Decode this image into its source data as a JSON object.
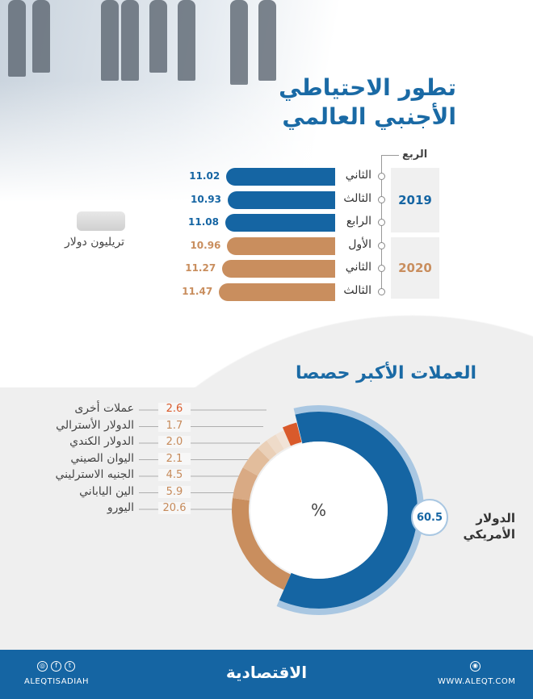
{
  "title": {
    "line1": "تطور الاحتياطي",
    "line2": "الأجنبي العالمي"
  },
  "quarter_header": "الربع",
  "unit": "تريليون دولار",
  "colors": {
    "y2019": "#1565a3",
    "y2020": "#c98e5e",
    "others": "#d95a2b",
    "light_blue": "#a9c7e2"
  },
  "chart_data": [
    {
      "type": "bar",
      "title": "تطور الاحتياطي الأجنبي العالمي",
      "unit": "تريليون دولار",
      "categories": [
        "الثاني",
        "الثالث",
        "الرابع",
        "الأول",
        "الثاني",
        "الثالث"
      ],
      "groups": [
        {
          "year": "2019",
          "indices": [
            0,
            1,
            2
          ]
        },
        {
          "year": "2020",
          "indices": [
            3,
            4,
            5
          ]
        }
      ],
      "values": [
        11.02,
        10.93,
        11.08,
        10.96,
        11.27,
        11.47
      ],
      "labels": [
        "11.02",
        "10.93",
        "11.08",
        "10.96",
        "11.27",
        "11.47"
      ]
    },
    {
      "type": "pie",
      "title": "العملات الأكبر حصصا",
      "center_label": "%",
      "slices": [
        {
          "name": "الدولار الأمريكي",
          "value": 60.5,
          "label": "60.5",
          "color": "#1565a3"
        },
        {
          "name": "اليورو",
          "value": 20.6,
          "label": "20.6",
          "color": "#c98e5e"
        },
        {
          "name": "الين الياباني",
          "value": 5.9,
          "label": "5.9",
          "color": "#d9aa84"
        },
        {
          "name": "الجنيه الاسترليني",
          "value": 4.5,
          "label": "4.5",
          "color": "#e2bd9c"
        },
        {
          "name": "اليوان الصيني",
          "value": 2.1,
          "label": "2.1",
          "color": "#ead0b8"
        },
        {
          "name": "الدولار الكندي",
          "value": 2.0,
          "label": "2.0",
          "color": "#eedbc9"
        },
        {
          "name": "الدولار الأسترالي",
          "value": 1.7,
          "label": "1.7",
          "color": "#f1e3d7"
        },
        {
          "name": "عملات أخرى",
          "value": 2.6,
          "label": "2.6",
          "color": "#d95a2b"
        }
      ]
    }
  ],
  "usd_label": {
    "line1": "الدولار",
    "line2": "الأمريكي"
  },
  "footer": {
    "social": "ALEQTISADIAH",
    "logo": "الاقتصادية",
    "website": "WWW.ALEQT.COM"
  }
}
